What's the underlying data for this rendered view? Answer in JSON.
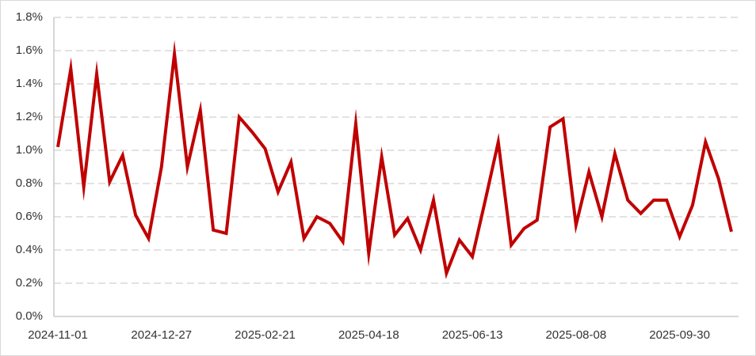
{
  "chart_data": {
    "type": "line",
    "categories": [
      "2024-11-01",
      null,
      null,
      null,
      null,
      null,
      null,
      null,
      "2024-12-27",
      null,
      null,
      null,
      null,
      null,
      null,
      null,
      "2025-02-21",
      null,
      null,
      null,
      null,
      null,
      null,
      null,
      "2025-04-18",
      null,
      null,
      null,
      null,
      null,
      null,
      null,
      "2025-06-13",
      null,
      null,
      null,
      null,
      null,
      null,
      null,
      "2025-08-08",
      null,
      null,
      null,
      null,
      null,
      null,
      null,
      "2025-09-30",
      null,
      null,
      null,
      null
    ],
    "values": [
      1.02,
      1.49,
      0.78,
      1.46,
      0.81,
      0.97,
      0.61,
      0.47,
      0.9,
      1.58,
      0.9,
      1.24,
      0.52,
      0.5,
      1.2,
      1.11,
      1.01,
      0.75,
      0.93,
      0.47,
      0.6,
      0.56,
      0.45,
      1.16,
      0.38,
      0.96,
      0.49,
      0.59,
      0.4,
      0.7,
      0.26,
      0.46,
      0.36,
      0.7,
      1.05,
      0.43,
      0.53,
      0.58,
      1.14,
      1.19,
      0.55,
      0.87,
      0.6,
      0.98,
      0.7,
      0.62,
      0.7,
      0.7,
      0.48,
      0.67,
      1.05,
      0.83,
      0.51
    ],
    "color": "#c00000",
    "ylim": [
      0,
      1.8
    ],
    "yticks": [
      {
        "value": 0,
        "label": "0.0%"
      },
      {
        "value": 0.2,
        "label": "0.2%"
      },
      {
        "value": 0.4,
        "label": "0.4%"
      },
      {
        "value": 0.6,
        "label": "0.6%"
      },
      {
        "value": 0.8,
        "label": "0.8%"
      },
      {
        "value": 1.0,
        "label": "1.0%"
      },
      {
        "value": 1.2,
        "label": "1.2%"
      },
      {
        "value": 1.4,
        "label": "1.4%"
      },
      {
        "value": 1.6,
        "label": "1.6%"
      },
      {
        "value": 1.8,
        "label": "1.8%"
      }
    ],
    "grid": true
  }
}
